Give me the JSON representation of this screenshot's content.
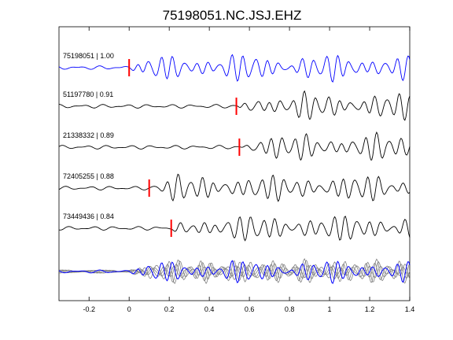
{
  "chart_data": {
    "type": "line",
    "title": "75198051.NC.JSJ.EHZ",
    "xlabel": "",
    "ylabel": "",
    "xlim": [
      -0.35,
      1.4
    ],
    "xticks": [
      -0.2,
      0,
      0.2,
      0.4,
      0.6,
      0.8,
      1,
      1.2,
      1.4
    ],
    "xtick_labels": [
      "-0.2",
      "0",
      "0.2",
      "0.4",
      "0.6",
      "0.8",
      "1",
      "1.2",
      "1.4"
    ],
    "grid": false,
    "legend": "none",
    "traces": [
      {
        "label": "75198051 | 1.00",
        "pick_time": 0.0,
        "color": "#0000ff",
        "seed": 1
      },
      {
        "label": "51197780 | 0.91",
        "pick_time": 0.535,
        "color": "#000000",
        "seed": 2
      },
      {
        "label": "21338332 | 0.89",
        "pick_time": 0.55,
        "color": "#000000",
        "seed": 3
      },
      {
        "label": "72405255 | 0.88",
        "pick_time": 0.1,
        "color": "#000000",
        "seed": 4
      },
      {
        "label": "73449436 | 0.84",
        "pick_time": 0.21,
        "color": "#000000",
        "seed": 5
      }
    ],
    "stack": {
      "description": "overlay of all traces",
      "colors": [
        "#808080",
        "#0000ff"
      ]
    },
    "pick_color": "#ff0000"
  }
}
